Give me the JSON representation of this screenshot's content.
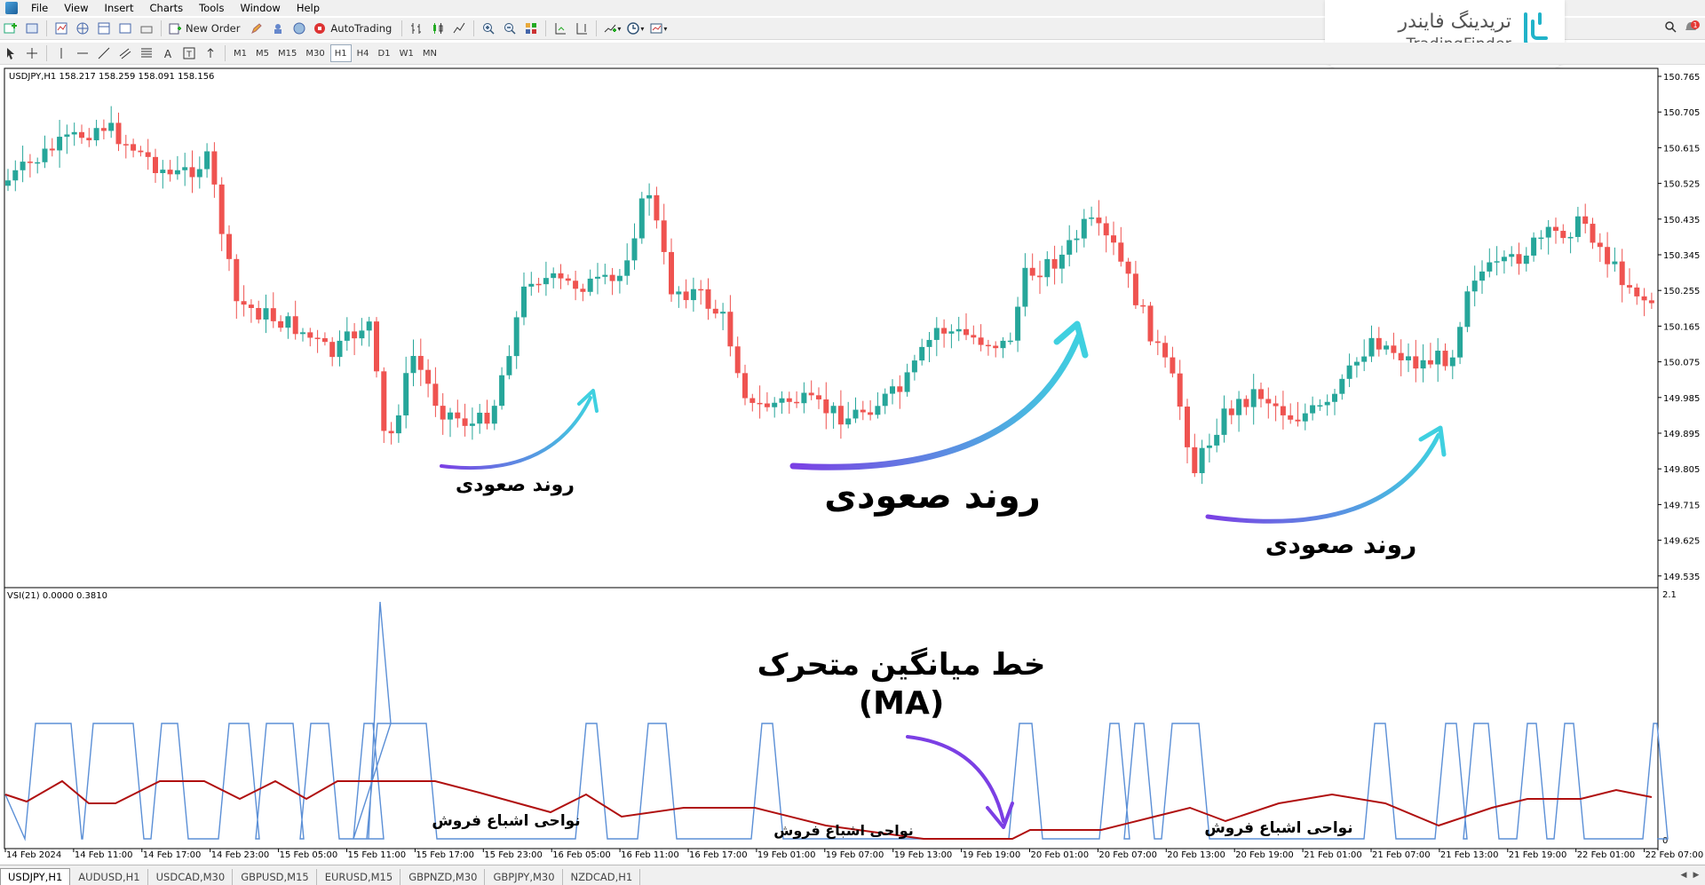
{
  "menu": [
    "File",
    "View",
    "Insert",
    "Charts",
    "Tools",
    "Window",
    "Help"
  ],
  "toolbar": {
    "new_order": "New Order",
    "autotrading": "AutoTrading"
  },
  "timeframes": [
    "M1",
    "M5",
    "M15",
    "M30",
    "H1",
    "H4",
    "D1",
    "W1",
    "MN"
  ],
  "active_timeframe": "H1",
  "logo": {
    "fa": "تریدینگ فایندر",
    "en": "TradingFinder"
  },
  "chart": {
    "info": "USDJPY,H1  158.217 158.259 158.091 158.156",
    "price_scale": [
      "150.765",
      "150.705",
      "150.615",
      "150.525",
      "150.435",
      "150.345",
      "150.255",
      "150.165",
      "150.075",
      "149.985",
      "149.895",
      "149.805",
      "149.715",
      "149.625",
      "149.535"
    ],
    "time_labels": [
      "14 Feb 2024",
      "14 Feb 11:00",
      "14 Feb 17:00",
      "14 Feb 23:00",
      "15 Feb 05:00",
      "15 Feb 11:00",
      "15 Feb 17:00",
      "15 Feb 23:00",
      "16 Feb 05:00",
      "16 Feb 11:00",
      "16 Feb 17:00",
      "19 Feb 01:00",
      "19 Feb 07:00",
      "19 Feb 13:00",
      "19 Feb 19:00",
      "20 Feb 01:00",
      "20 Feb 07:00",
      "20 Feb 13:00",
      "20 Feb 19:00",
      "21 Feb 01:00",
      "21 Feb 07:00",
      "21 Feb 13:00",
      "21 Feb 19:00",
      "22 Feb 01:00",
      "22 Feb 07:00"
    ],
    "bull_color": "#26a69a",
    "bear_color": "#ef5350"
  },
  "indicator": {
    "info": "VSI(21) 0.0000 0.3810",
    "scale_top": "2.1",
    "scale_bottom": "0",
    "vsi_color": "#5b8fd6",
    "ma_color": "#b01010"
  },
  "annotations": {
    "uptrend_1": "روند صعودی",
    "uptrend_2": "روند صعودی",
    "uptrend_3": "روند صعودی",
    "ma_label_line1": "خط میانگین متحرک",
    "ma_label_line2": "(MA)",
    "oversold_1": "نواحی اشباع فروش",
    "oversold_2": "نواحی اشباع فروش",
    "oversold_3": "نواحی اشباع فروش"
  },
  "tabs": [
    "USDJPY,H1",
    "AUDUSD,H1",
    "USDCAD,M30",
    "GBPUSD,M15",
    "EURUSD,M15",
    "GBPNZD,M30",
    "GBPJPY,M30",
    "NZDCAD,H1"
  ],
  "active_tab": "USDJPY,H1"
}
